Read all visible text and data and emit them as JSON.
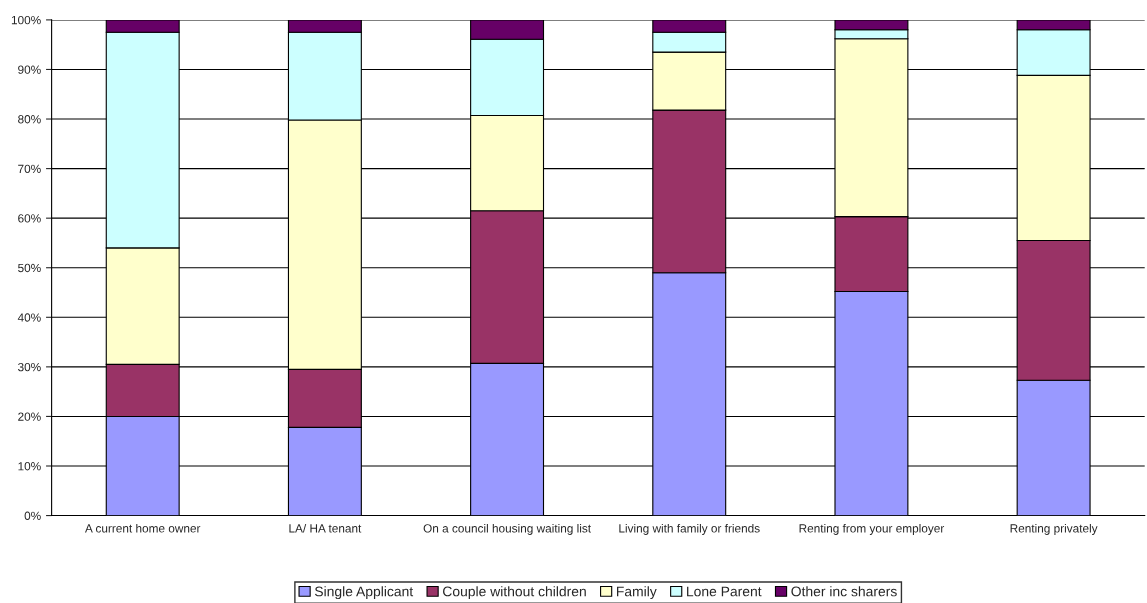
{
  "chart_data": {
    "type": "bar",
    "stacked": true,
    "categories": [
      "A current home owner",
      "LA/ HA tenant",
      "On a council housing waiting list",
      "Living with family or friends",
      "Renting from your employer",
      "Renting privately"
    ],
    "series": [
      {
        "name": "Single Applicant",
        "color": "#9999ff",
        "values": [
          20.0,
          17.8,
          30.7,
          49.0,
          45.2,
          27.3
        ]
      },
      {
        "name": "Couple without children",
        "color": "#993366",
        "values": [
          10.5,
          11.7,
          30.8,
          32.8,
          15.1,
          28.2
        ]
      },
      {
        "name": "Family",
        "color": "#ffffcc",
        "values": [
          23.5,
          50.3,
          19.2,
          11.7,
          35.9,
          33.3
        ]
      },
      {
        "name": "Lone Parent",
        "color": "#ccffff",
        "values": [
          43.5,
          17.7,
          15.4,
          4.0,
          1.8,
          9.2
        ]
      },
      {
        "name": "Other inc sharers",
        "color": "#660066",
        "values": [
          2.5,
          2.5,
          3.9,
          2.5,
          2.0,
          2.0
        ]
      }
    ],
    "ylim": [
      0,
      100
    ],
    "yticks": [
      {
        "value": 0,
        "label": "0%"
      },
      {
        "value": 10,
        "label": "10%"
      },
      {
        "value": 20,
        "label": "20%"
      },
      {
        "value": 30,
        "label": "30%"
      },
      {
        "value": 40,
        "label": "40%"
      },
      {
        "value": 50,
        "label": "50%"
      },
      {
        "value": 60,
        "label": "60%"
      },
      {
        "value": 70,
        "label": "70%"
      },
      {
        "value": 80,
        "label": "80%"
      },
      {
        "value": 90,
        "label": "90%"
      },
      {
        "value": 100,
        "label": "100%"
      }
    ],
    "grid": "y",
    "legend": "bottom"
  }
}
